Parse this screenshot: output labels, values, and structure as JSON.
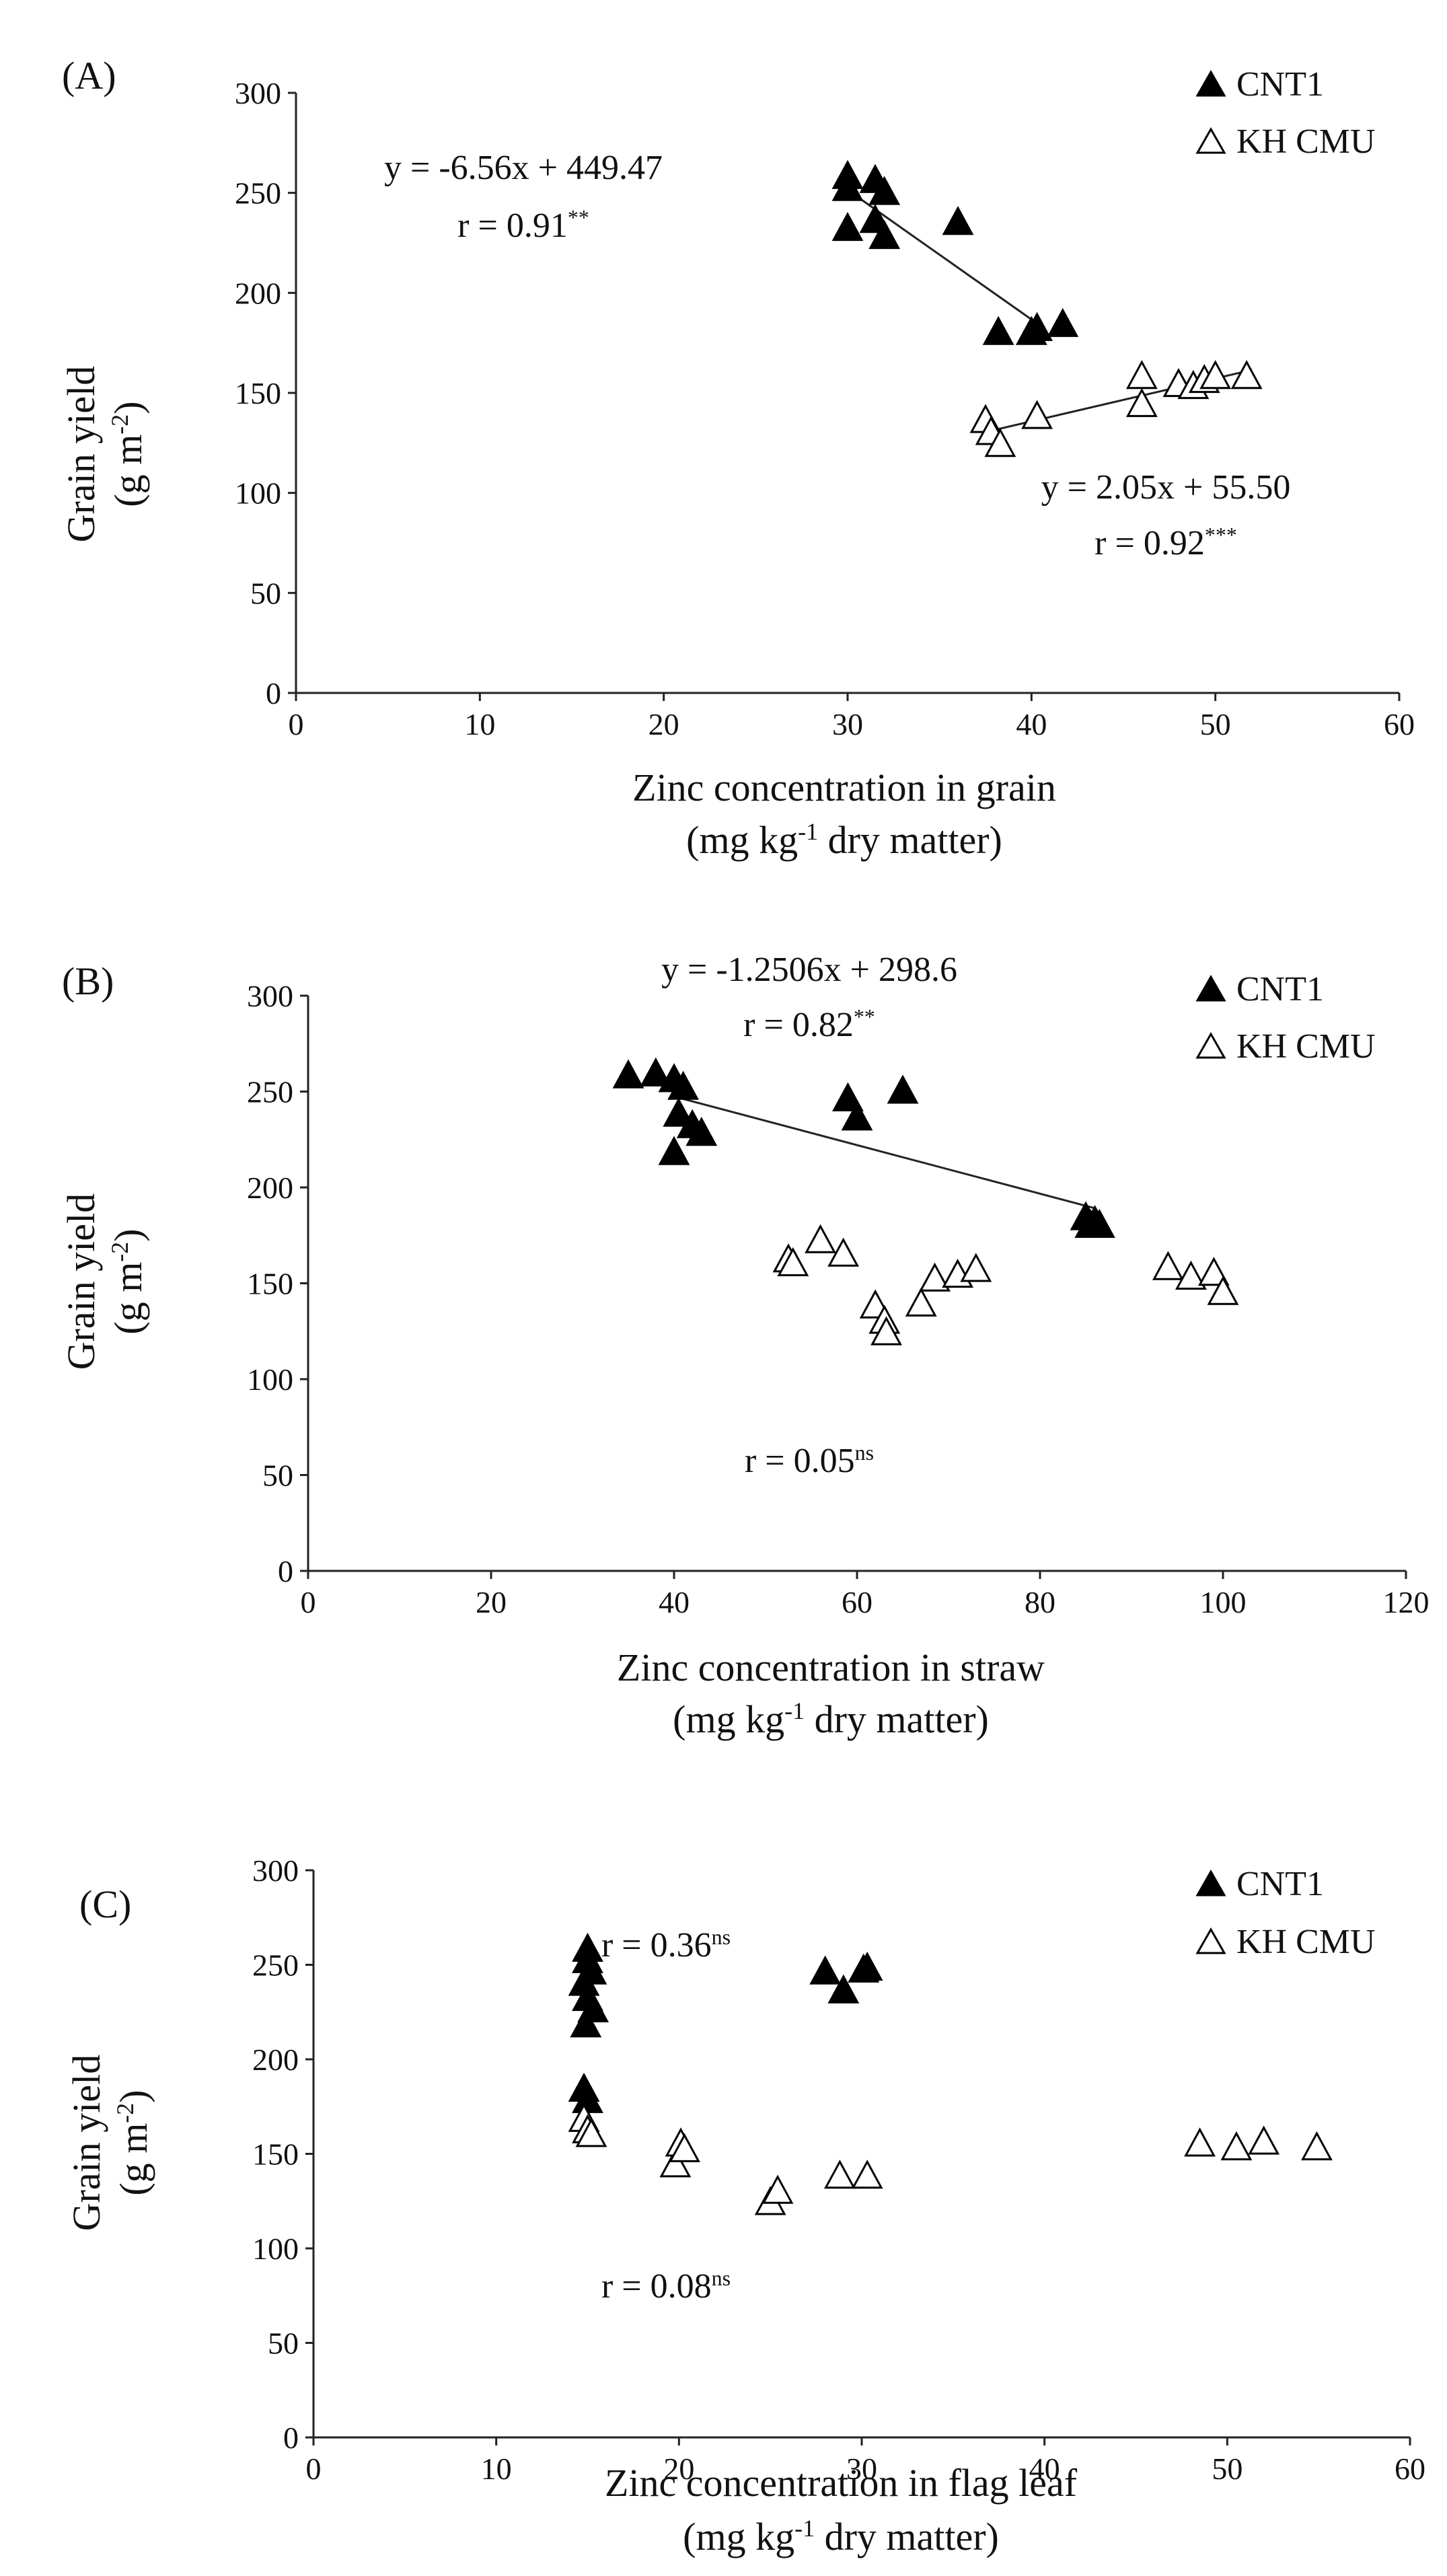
{
  "chart_data": [
    {
      "type": "scatter",
      "panel_label": "(A)",
      "xlabel": "Zinc concentration in grain",
      "xlabel_unit": {
        "prefix": "(mg kg",
        "sup": "-1",
        "suffix": " dry matter)"
      },
      "ylabel": "Grain yield",
      "ylabel_unit": {
        "prefix": "(g m",
        "sup": "-2",
        "suffix": ")"
      },
      "xlim": [
        0,
        60
      ],
      "ylim": [
        0,
        300
      ],
      "xticks": [
        0,
        10,
        20,
        30,
        40,
        50,
        60
      ],
      "yticks": [
        0,
        50,
        100,
        150,
        200,
        250,
        300
      ],
      "grid": false,
      "legend_position": "top-right",
      "series": [
        {
          "name": "CNT1",
          "marker": "filled-triangle",
          "points": [
            [
              30,
              258
            ],
            [
              30,
              252
            ],
            [
              31.5,
              256
            ],
            [
              32,
              250
            ],
            [
              31.5,
              236
            ],
            [
              30,
              232
            ],
            [
              32,
              228
            ],
            [
              36,
              235
            ],
            [
              38.2,
              180
            ],
            [
              40,
              180
            ],
            [
              40.3,
              182
            ],
            [
              41.7,
              184
            ]
          ],
          "trendline": {
            "x_range": [
              30,
              40.5
            ]
          }
        },
        {
          "name": "KH CMU",
          "marker": "open-triangle",
          "points": [
            [
              37.5,
              136
            ],
            [
              37.8,
              130
            ],
            [
              38.3,
              124
            ],
            [
              40.3,
              138
            ],
            [
              46,
              158
            ],
            [
              46,
              144
            ],
            [
              48,
              154
            ],
            [
              48.8,
              153
            ],
            [
              49.4,
              156
            ],
            [
              50,
              158
            ],
            [
              51.7,
              158
            ]
          ],
          "trendline": {
            "x_range": [
              38,
              52
            ]
          }
        }
      ],
      "annotations": [
        {
          "text": "y = -6.56x + 449.47",
          "x": 20,
          "y": 257
        },
        {
          "text": "r = 0.91",
          "sup": "**",
          "x": 20,
          "y": 228
        },
        {
          "text": "y = 2.05x + 55.50",
          "x": 50,
          "y": 98
        },
        {
          "text": "r = 0.92",
          "sup": "***",
          "x": 50,
          "y": 70
        }
      ]
    },
    {
      "type": "scatter",
      "panel_label": "(B)",
      "xlabel": "Zinc concentration in straw",
      "xlabel_unit": {
        "prefix": "(mg kg",
        "sup": "-1",
        "suffix": " dry matter)"
      },
      "ylabel": "Grain yield",
      "ylabel_unit": {
        "prefix": "(g m",
        "sup": "-2",
        "suffix": ")"
      },
      "xlim": [
        0,
        120
      ],
      "ylim": [
        0,
        300
      ],
      "xticks": [
        0,
        20,
        40,
        60,
        80,
        100,
        120
      ],
      "yticks": [
        0,
        50,
        100,
        150,
        200,
        250,
        300
      ],
      "grid": false,
      "legend_position": "top-right",
      "series": [
        {
          "name": "CNT1",
          "marker": "filled-triangle",
          "points": [
            [
              35,
              258
            ],
            [
              38,
              259
            ],
            [
              40,
              256
            ],
            [
              41,
              252
            ],
            [
              40.5,
              238
            ],
            [
              42,
              232
            ],
            [
              43,
              228
            ],
            [
              40,
              218
            ],
            [
              59,
              246
            ],
            [
              60,
              236
            ],
            [
              65,
              250
            ],
            [
              85,
              184
            ],
            [
              85.5,
              180
            ],
            [
              86,
              182
            ],
            [
              86.5,
              180
            ]
          ],
          "trendline": {
            "x_range": [
              40,
              86
            ]
          }
        },
        {
          "name": "KH CMU",
          "marker": "open-triangle",
          "points": [
            [
              52.5,
              162
            ],
            [
              53,
              160
            ],
            [
              56,
              172
            ],
            [
              58.5,
              165
            ],
            [
              62,
              138
            ],
            [
              63,
              130
            ],
            [
              63.2,
              124
            ],
            [
              67,
              139
            ],
            [
              68.5,
              152
            ],
            [
              71,
              154
            ],
            [
              73,
              157
            ],
            [
              94,
              158
            ],
            [
              96.5,
              153
            ],
            [
              99,
              155
            ],
            [
              100,
              145
            ]
          ]
        }
      ],
      "annotations": [
        {
          "text": "y = -1.2506x + 298.6",
          "x": 56,
          "y": 276
        },
        {
          "text": "r = 0.82",
          "sup": "**",
          "x": 56,
          "y": 248
        },
        {
          "text": "r = 0.05",
          "sup": "ns",
          "x": 56,
          "y": 55
        }
      ]
    },
    {
      "type": "scatter",
      "panel_label": "(C)",
      "xlabel": "Zinc concentration in flag leaf",
      "xlabel_unit": {
        "prefix": "(mg kg",
        "sup": "-1",
        "suffix": " dry matter)"
      },
      "ylabel": "Grain yield",
      "ylabel_unit": {
        "prefix": "(g m",
        "sup": "-2",
        "suffix": ")"
      },
      "xlim": [
        0,
        60
      ],
      "ylim": [
        0,
        300
      ],
      "xticks": [
        0,
        10,
        20,
        30,
        40,
        50,
        60
      ],
      "yticks": [
        0,
        50,
        100,
        150,
        200,
        250,
        300
      ],
      "grid": false,
      "legend_position": "top-right",
      "series": [
        {
          "name": "CNT1",
          "marker": "filled-triangle",
          "points": [
            [
              15,
              258
            ],
            [
              15,
              252
            ],
            [
              15.2,
              246
            ],
            [
              14.8,
              240
            ],
            [
              15,
              232
            ],
            [
              15.3,
              226
            ],
            [
              14.9,
              218
            ],
            [
              14.8,
              184
            ],
            [
              15,
              178
            ],
            [
              28,
              246
            ],
            [
              29,
              236
            ],
            [
              30.1,
              247
            ],
            [
              30.3,
              248
            ]
          ]
        },
        {
          "name": "KH CMU",
          "marker": "open-triangle",
          "points": [
            [
              14.8,
              168
            ],
            [
              15,
              162
            ],
            [
              15.2,
              160
            ],
            [
              19.8,
              144
            ],
            [
              20.1,
              155
            ],
            [
              20.3,
              152
            ],
            [
              25,
              124
            ],
            [
              25.4,
              130
            ],
            [
              28.8,
              138
            ],
            [
              30.3,
              138
            ],
            [
              48.5,
              155
            ],
            [
              50.5,
              153
            ],
            [
              52,
              156
            ],
            [
              54.9,
              153
            ]
          ]
        }
      ],
      "annotations": [
        {
          "text": "r = 0.36",
          "sup": "ns",
          "x": 17,
          "y": 283
        },
        {
          "text": "r = 0.08",
          "sup": "ns",
          "x": 17,
          "y": 82
        }
      ]
    }
  ]
}
